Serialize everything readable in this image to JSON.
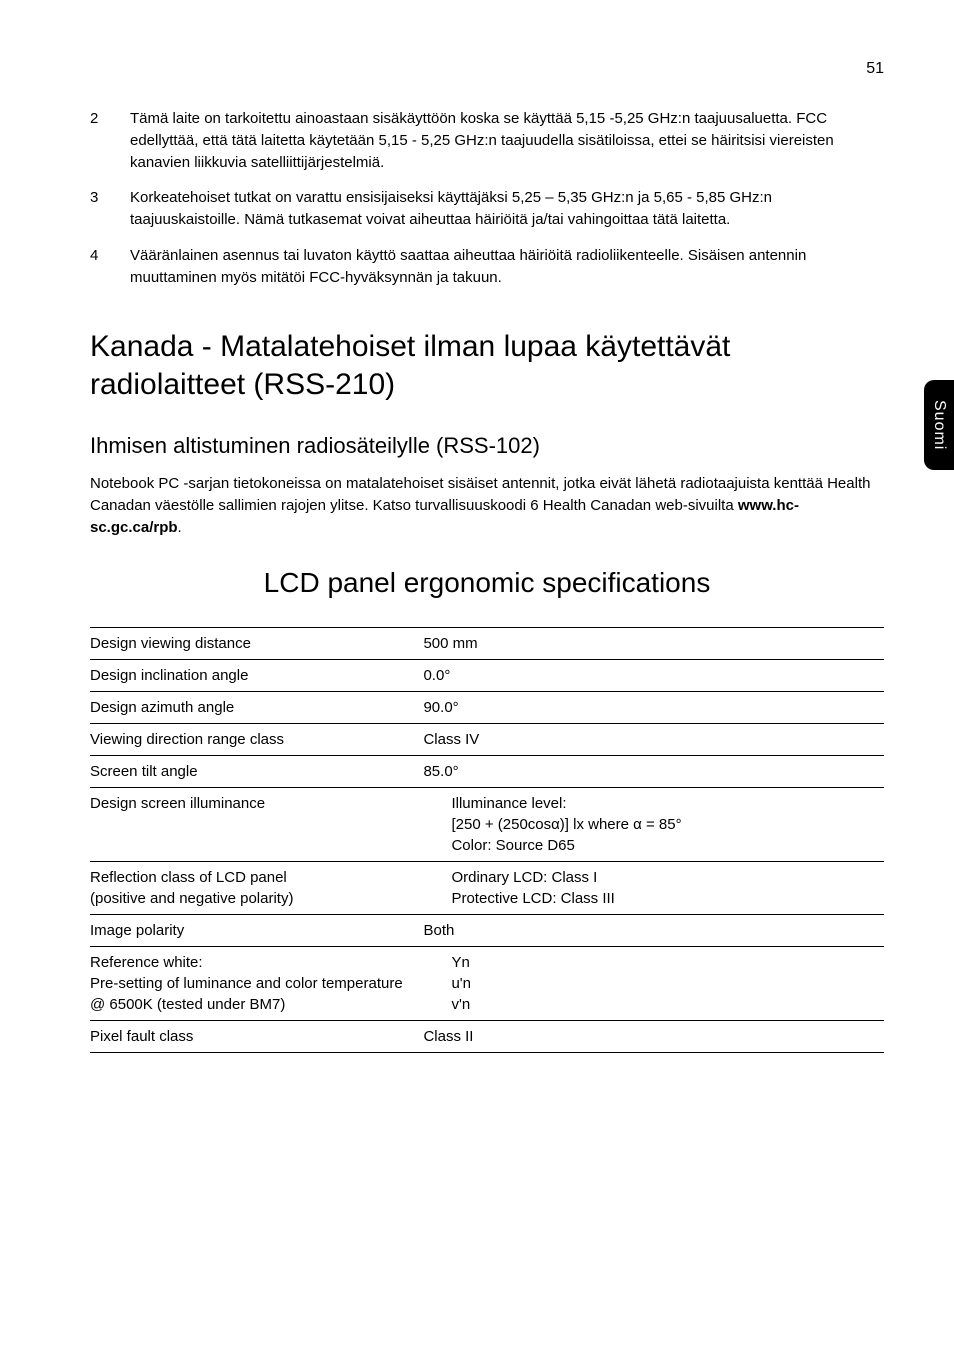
{
  "page_number": "51",
  "side_tab": "Suomi",
  "list": [
    {
      "num": "2",
      "text": "Tämä laite on tarkoitettu ainoastaan sisäkäyttöön koska se käyttää 5,15 -5,25 GHz:n taajuusaluetta. FCC edellyttää, että tätä laitetta käytetään 5,15 - 5,25 GHz:n taajuudella sisätiloissa, ettei se häiritsisi viereisten kanavien liikkuvia satelliittijärjestelmiä."
    },
    {
      "num": "3",
      "text": "Korkeatehoiset tutkat on varattu ensisijaiseksi käyttäjäksi 5,25 – 5,35 GHz:n ja 5,65 - 5,85 GHz:n taajuuskaistoille. Nämä tutkasemat voivat aiheuttaa häiriöitä ja/tai vahingoittaa tätä laitetta."
    },
    {
      "num": "4",
      "text": "Vääränlainen asennus tai luvaton käyttö saattaa aiheuttaa häiriöitä radioliikenteelle. Sisäisen antennin muuttaminen myös mitätöi FCC-hyväksynnän ja takuun."
    }
  ],
  "h1_a": "Kanada - Matalatehoiset ilman lupaa käytettävät radiolaitteet (RSS-210)",
  "h2_a": "Ihmisen altistuminen radiosäteilylle (RSS-102)",
  "para_a_1": "Notebook PC -sarjan tietokoneissa on matalatehoiset sisäiset antennit, jotka eivät lähetä radiotaajuista kenttää Health Canadan väestölle sallimien rajojen ylitse. Katso turvallisuuskoodi 6 Health Canadan web-sivuilta ",
  "para_a_bold": "www.hc-sc.gc.ca/rpb",
  "para_a_2": ".",
  "h1_b": "LCD panel ergonomic specifications",
  "table": {
    "rows": [
      {
        "left": "Design viewing distance",
        "right": "500 mm"
      },
      {
        "left": "Design inclination angle",
        "right": "0.0°"
      },
      {
        "left": "Design azimuth angle",
        "right": "90.0°"
      },
      {
        "left": "Viewing direction range class",
        "right": "Class IV"
      },
      {
        "left": "Screen tilt angle",
        "right": "85.0°"
      }
    ],
    "illum_left": "Design screen illuminance",
    "illum_r1": "Illuminance level:",
    "illum_r2": "[250 + (250cosα)] lx where α = 85°",
    "illum_r3": "Color: Source D65",
    "refl_left1": "Reflection class of LCD panel",
    "refl_left2": "(positive and negative polarity)",
    "refl_r1": "Ordinary LCD: Class I",
    "refl_r2": "Protective LCD: Class III",
    "imgpol_left": "Image polarity",
    "imgpol_right": "Both",
    "ref_left1": "Reference white:",
    "ref_left2": "Pre-setting of luminance and color temperature @ 6500K (tested under BM7)",
    "ref_r1": "Yn",
    "ref_r2": "u'n",
    "ref_r3": "v'n",
    "pix_left": "Pixel fault class",
    "pix_right": "Class II"
  }
}
